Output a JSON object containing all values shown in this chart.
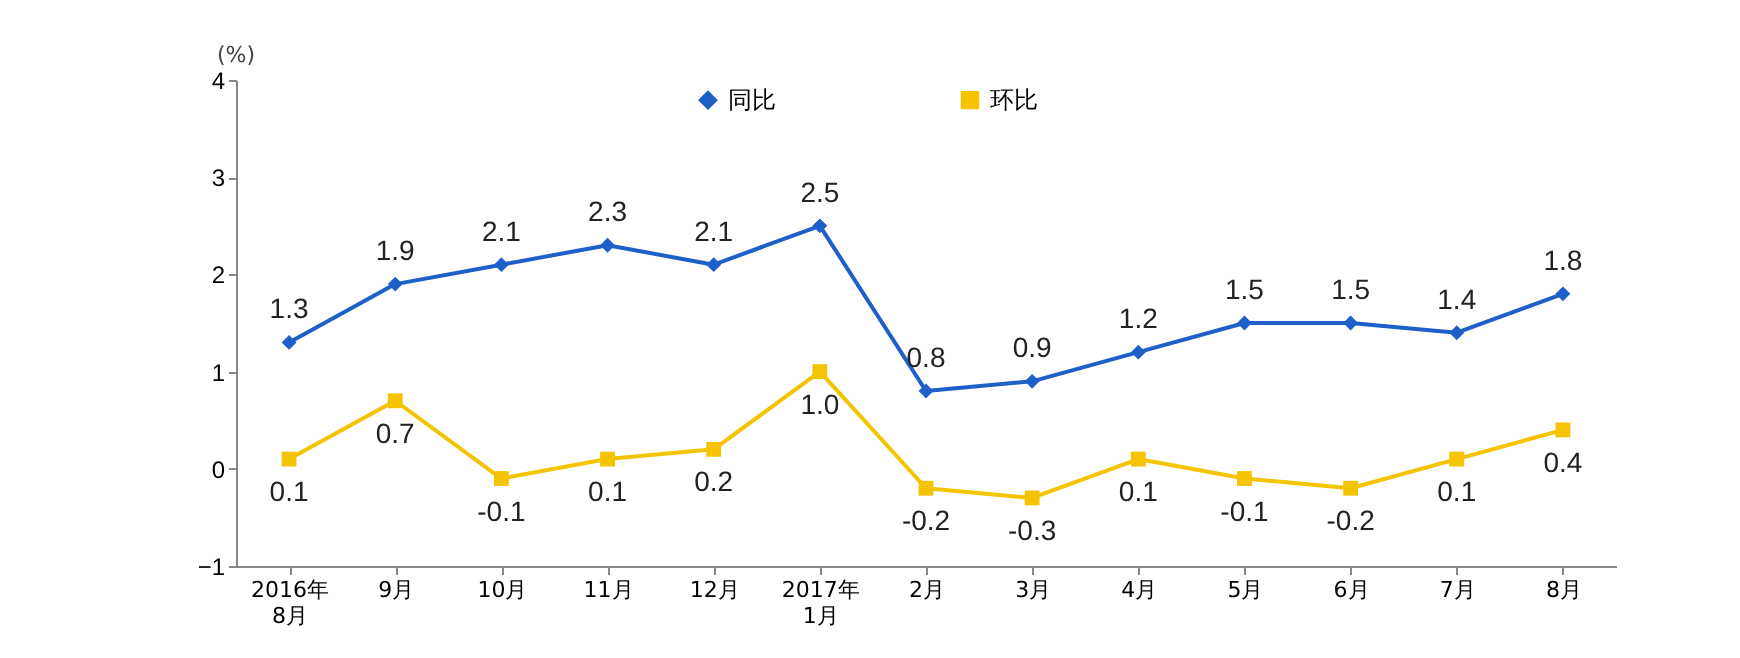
{
  "chart_data": {
    "type": "line",
    "ylabel": "(%)",
    "categories": [
      "2016年\n8月",
      "9月",
      "10月",
      "11月",
      "12月",
      "2017年\n1月",
      "2月",
      "3月",
      "4月",
      "5月",
      "6月",
      "7月",
      "8月"
    ],
    "series": [
      {
        "name": "同比",
        "color": "#1f5fc8",
        "marker": "diamond",
        "values": [
          1.3,
          1.9,
          2.1,
          2.3,
          2.1,
          2.5,
          0.8,
          0.9,
          1.2,
          1.5,
          1.5,
          1.4,
          1.8
        ],
        "value_labels": [
          "1.3",
          "1.9",
          "2.1",
          "2.3",
          "2.1",
          "2.5",
          "0.8",
          "0.9",
          "1.2",
          "1.5",
          "1.5",
          "1.4",
          "1.8"
        ]
      },
      {
        "name": "环比",
        "color": "#f5c400",
        "marker": "square",
        "values": [
          0.1,
          0.7,
          -0.1,
          0.1,
          0.2,
          1.0,
          -0.2,
          -0.3,
          0.1,
          -0.1,
          -0.2,
          0.1,
          0.4
        ],
        "value_labels": [
          "0.1",
          "0.7",
          "-0.1",
          "0.1",
          "0.2",
          "1.0",
          "-0.2",
          "-0.3",
          "0.1",
          "-0.1",
          "-0.2",
          "0.1",
          "0.4"
        ]
      }
    ],
    "ylim": [
      -1,
      4
    ],
    "yticks": [
      -1,
      0,
      1,
      2,
      3,
      4
    ],
    "grid": false,
    "legend": "top"
  }
}
